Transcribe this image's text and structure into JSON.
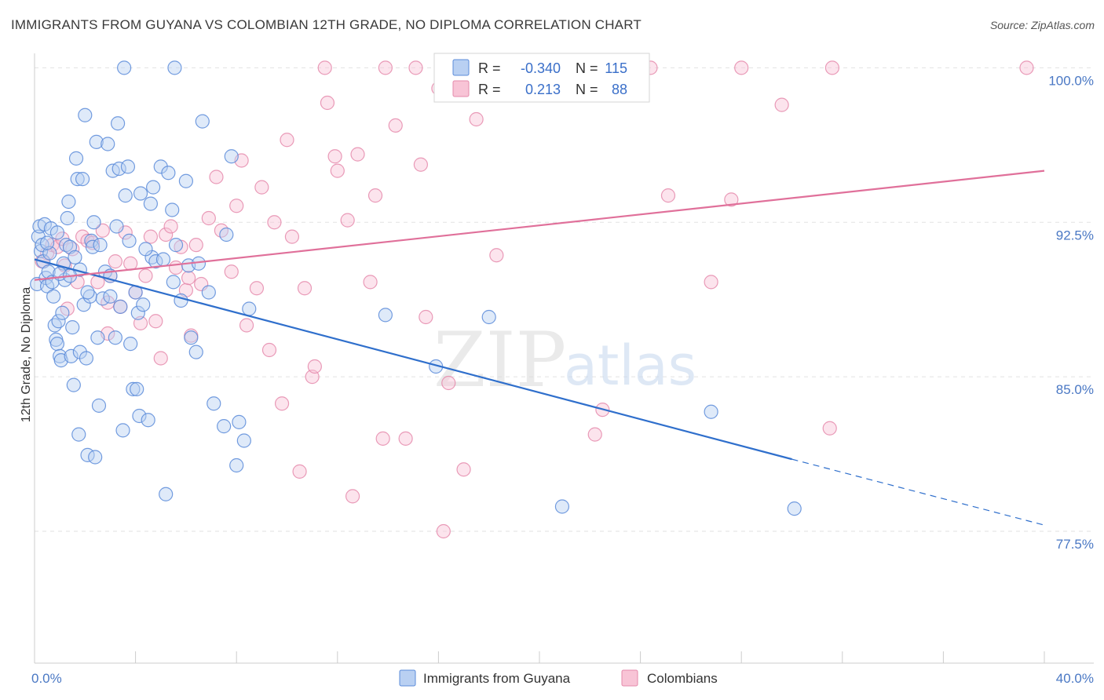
{
  "title": "IMMIGRANTS FROM GUYANA VS COLOMBIAN 12TH GRADE, NO DIPLOMA CORRELATION CHART",
  "source": "Source: ZipAtlas.com",
  "watermark": {
    "part1": "ZIP",
    "part2": "atlas"
  },
  "stats": {
    "r_label": "R =",
    "n_label": "N =",
    "rows": [
      {
        "r": "-0.340",
        "n": "115",
        "fill": "#b9d0f2",
        "stroke": "#5b8bd9"
      },
      {
        "r": "0.213",
        "n": "88",
        "fill": "#f8c4d6",
        "stroke": "#e58aab"
      }
    ]
  },
  "chart_data": {
    "type": "scatter",
    "xlabel": "",
    "ylabel": "12th Grade, No Diploma",
    "xlim": [
      0,
      40
    ],
    "ylim": [
      71.1,
      100.7
    ],
    "x_tick_labels": [
      {
        "value": 0,
        "label": "0.0%"
      },
      {
        "value": 40,
        "label": "40.0%"
      }
    ],
    "y_ticks": [
      {
        "value": 100,
        "label": "100.0%"
      },
      {
        "value": 92.5,
        "label": "92.5%"
      },
      {
        "value": 85,
        "label": "85.0%"
      },
      {
        "value": 77.5,
        "label": "77.5%"
      }
    ],
    "grid": "horizontal dashed",
    "legend_position": "bottom-center",
    "series": [
      {
        "name": "Immigrants from Guyana",
        "color": "#5b8bd9",
        "fill": "#b9d0f2",
        "line_color": "#2f6fcc",
        "trend": {
          "x0": 0,
          "y0": 90.7,
          "x1": 30,
          "y1": 81.0,
          "x_dash_end": 40,
          "y_dash_end": 77.8
        },
        "points": [
          [
            0.1,
            89.5
          ],
          [
            0.15,
            91.8
          ],
          [
            0.2,
            92.3
          ],
          [
            0.25,
            91.1
          ],
          [
            0.3,
            91.4
          ],
          [
            0.35,
            90.6
          ],
          [
            0.4,
            92.4
          ],
          [
            0.45,
            89.8
          ],
          [
            0.5,
            89.4
          ],
          [
            0.55,
            90.1
          ],
          [
            0.6,
            91.0
          ],
          [
            0.65,
            92.2
          ],
          [
            0.7,
            89.6
          ],
          [
            0.75,
            88.9
          ],
          [
            0.8,
            87.5
          ],
          [
            0.85,
            86.8
          ],
          [
            0.9,
            86.6
          ],
          [
            0.95,
            87.7
          ],
          [
            1.0,
            86.0
          ],
          [
            1.05,
            85.8
          ],
          [
            1.1,
            88.1
          ],
          [
            1.15,
            90.5
          ],
          [
            1.2,
            89.7
          ],
          [
            1.25,
            91.4
          ],
          [
            1.3,
            92.7
          ],
          [
            1.35,
            93.5
          ],
          [
            1.4,
            91.3
          ],
          [
            1.45,
            86.0
          ],
          [
            1.5,
            87.4
          ],
          [
            1.55,
            84.6
          ],
          [
            1.6,
            90.8
          ],
          [
            1.65,
            95.6
          ],
          [
            1.7,
            94.6
          ],
          [
            1.75,
            82.2
          ],
          [
            1.8,
            86.2
          ],
          [
            1.9,
            94.6
          ],
          [
            1.95,
            88.5
          ],
          [
            2.0,
            97.7
          ],
          [
            2.05,
            85.9
          ],
          [
            2.1,
            81.2
          ],
          [
            2.2,
            88.9
          ],
          [
            2.25,
            91.6
          ],
          [
            2.3,
            91.3
          ],
          [
            2.35,
            92.5
          ],
          [
            2.4,
            81.1
          ],
          [
            2.45,
            96.4
          ],
          [
            2.5,
            86.9
          ],
          [
            2.55,
            83.6
          ],
          [
            2.7,
            88.8
          ],
          [
            2.8,
            90.1
          ],
          [
            2.9,
            96.3
          ],
          [
            3.0,
            89.9
          ],
          [
            3.1,
            95.0
          ],
          [
            3.2,
            86.9
          ],
          [
            3.25,
            92.3
          ],
          [
            3.3,
            97.3
          ],
          [
            3.35,
            95.1
          ],
          [
            3.4,
            88.4
          ],
          [
            3.5,
            82.4
          ],
          [
            3.55,
            100.0
          ],
          [
            3.6,
            93.8
          ],
          [
            3.7,
            95.2
          ],
          [
            3.75,
            91.6
          ],
          [
            3.8,
            86.6
          ],
          [
            3.9,
            84.4
          ],
          [
            4.0,
            89.1
          ],
          [
            4.05,
            84.4
          ],
          [
            4.1,
            88.1
          ],
          [
            4.15,
            83.1
          ],
          [
            4.2,
            93.9
          ],
          [
            4.3,
            88.5
          ],
          [
            4.5,
            82.9
          ],
          [
            4.6,
            93.4
          ],
          [
            4.65,
            90.8
          ],
          [
            4.7,
            94.2
          ],
          [
            4.8,
            90.6
          ],
          [
            5.0,
            95.2
          ],
          [
            5.1,
            90.7
          ],
          [
            5.2,
            79.3
          ],
          [
            5.3,
            94.9
          ],
          [
            5.45,
            93.1
          ],
          [
            5.5,
            89.6
          ],
          [
            5.55,
            100.0
          ],
          [
            5.8,
            88.7
          ],
          [
            6.0,
            94.5
          ],
          [
            6.1,
            90.4
          ],
          [
            6.2,
            86.9
          ],
          [
            6.4,
            86.2
          ],
          [
            6.5,
            90.5
          ],
          [
            6.65,
            97.4
          ],
          [
            6.9,
            89.1
          ],
          [
            7.1,
            83.7
          ],
          [
            7.5,
            82.6
          ],
          [
            7.6,
            91.9
          ],
          [
            7.8,
            95.7
          ],
          [
            8.0,
            80.7
          ],
          [
            8.1,
            82.8
          ],
          [
            8.3,
            81.9
          ],
          [
            8.5,
            88.3
          ],
          [
            13.9,
            88.0
          ],
          [
            15.9,
            85.5
          ],
          [
            18.0,
            87.9
          ],
          [
            20.9,
            78.7
          ],
          [
            26.8,
            83.3
          ],
          [
            30.1,
            78.6
          ],
          [
            1.0,
            90.0
          ],
          [
            0.5,
            91.5
          ],
          [
            1.8,
            90.2
          ],
          [
            2.6,
            91.4
          ],
          [
            3.0,
            88.9
          ],
          [
            0.9,
            92.0
          ],
          [
            1.4,
            89.9
          ],
          [
            2.1,
            89.1
          ],
          [
            4.4,
            91.2
          ],
          [
            5.6,
            91.4
          ]
        ]
      },
      {
        "name": "Colombians",
        "color": "#e58aab",
        "fill": "#f8c4d6",
        "line_color": "#e0709a",
        "trend": {
          "x0": 0,
          "y0": 89.7,
          "x1": 40,
          "y1": 95.0
        },
        "points": [
          [
            0.3,
            90.6
          ],
          [
            0.5,
            91.0
          ],
          [
            0.7,
            91.4
          ],
          [
            0.9,
            91.3
          ],
          [
            1.1,
            91.7
          ],
          [
            1.3,
            88.3
          ],
          [
            1.5,
            91.2
          ],
          [
            1.7,
            89.6
          ],
          [
            1.9,
            91.8
          ],
          [
            2.1,
            91.6
          ],
          [
            2.3,
            91.5
          ],
          [
            2.5,
            89.6
          ],
          [
            2.7,
            92.1
          ],
          [
            2.9,
            87.1
          ],
          [
            3.0,
            89.9
          ],
          [
            3.2,
            90.6
          ],
          [
            3.4,
            88.4
          ],
          [
            3.6,
            92.0
          ],
          [
            3.8,
            90.5
          ],
          [
            4.0,
            89.1
          ],
          [
            4.2,
            87.6
          ],
          [
            4.4,
            89.9
          ],
          [
            4.6,
            91.8
          ],
          [
            4.8,
            87.7
          ],
          [
            5.0,
            85.9
          ],
          [
            5.2,
            91.9
          ],
          [
            5.4,
            92.3
          ],
          [
            5.6,
            90.3
          ],
          [
            5.8,
            91.3
          ],
          [
            6.0,
            89.2
          ],
          [
            6.2,
            87.0
          ],
          [
            6.4,
            91.4
          ],
          [
            6.6,
            89.5
          ],
          [
            6.9,
            92.7
          ],
          [
            7.2,
            94.7
          ],
          [
            7.4,
            92.1
          ],
          [
            7.8,
            90.1
          ],
          [
            8.0,
            93.3
          ],
          [
            8.2,
            95.5
          ],
          [
            8.4,
            87.5
          ],
          [
            8.8,
            89.3
          ],
          [
            9.0,
            94.2
          ],
          [
            9.3,
            86.3
          ],
          [
            9.5,
            92.5
          ],
          [
            9.8,
            83.7
          ],
          [
            10.0,
            96.5
          ],
          [
            10.2,
            91.8
          ],
          [
            10.5,
            80.4
          ],
          [
            10.7,
            89.3
          ],
          [
            11.0,
            85.0
          ],
          [
            11.1,
            85.5
          ],
          [
            11.5,
            100.0
          ],
          [
            11.6,
            98.3
          ],
          [
            11.9,
            95.7
          ],
          [
            12.0,
            95.0
          ],
          [
            12.4,
            92.6
          ],
          [
            12.6,
            79.2
          ],
          [
            12.8,
            95.8
          ],
          [
            13.3,
            89.6
          ],
          [
            13.5,
            93.8
          ],
          [
            13.8,
            82.0
          ],
          [
            13.9,
            100.0
          ],
          [
            14.3,
            97.2
          ],
          [
            14.7,
            82.0
          ],
          [
            15.1,
            100.0
          ],
          [
            15.3,
            95.3
          ],
          [
            15.5,
            87.9
          ],
          [
            16.0,
            99.0
          ],
          [
            16.2,
            77.5
          ],
          [
            16.4,
            84.7
          ],
          [
            17.0,
            80.5
          ],
          [
            17.4,
            99.3
          ],
          [
            17.5,
            97.5
          ],
          [
            18.3,
            90.9
          ],
          [
            22.2,
            82.2
          ],
          [
            22.5,
            83.4
          ],
          [
            24.4,
            100.0
          ],
          [
            25.1,
            93.8
          ],
          [
            26.8,
            89.6
          ],
          [
            27.6,
            93.6
          ],
          [
            28.0,
            100.0
          ],
          [
            29.6,
            98.2
          ],
          [
            31.6,
            100.0
          ],
          [
            31.5,
            82.5
          ],
          [
            39.3,
            100.0
          ],
          [
            1.2,
            90.4
          ],
          [
            2.9,
            88.6
          ],
          [
            6.1,
            89.8
          ]
        ]
      }
    ]
  },
  "legend": [
    {
      "label": "Immigrants from Guyana",
      "fill": "#b9d0f2",
      "stroke": "#5b8bd9"
    },
    {
      "label": "Colombians",
      "fill": "#f8c4d6",
      "stroke": "#e58aab"
    }
  ]
}
